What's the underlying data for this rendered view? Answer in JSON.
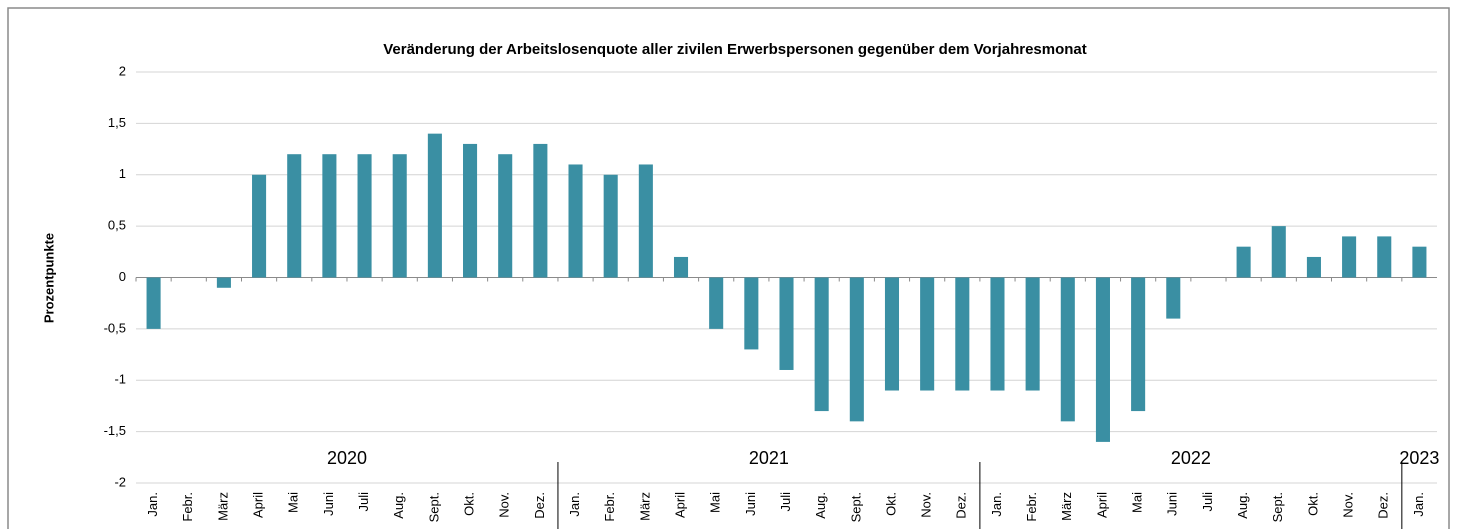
{
  "chart_data": {
    "type": "bar",
    "title": "Veränderung der Arbeitslosenquote aller zivilen Erwerbspersonen gegenüber dem Vorjahresmonat",
    "y_label": "Prozentpunkte",
    "categories": [
      "Jan.",
      "Febr.",
      "März",
      "April",
      "Mai",
      "Juni",
      "Juli",
      "Aug.",
      "Sept.",
      "Okt.",
      "Nov.",
      "Dez.",
      "Jan.",
      "Febr.",
      "März",
      "April",
      "Mai",
      "Juni",
      "Juli",
      "Aug.",
      "Sept.",
      "Okt.",
      "Nov.",
      "Dez.",
      "Jan.",
      "Febr.",
      "März",
      "April",
      "Mai",
      "Juni",
      "Juli",
      "Aug.",
      "Sept.",
      "Okt.",
      "Nov.",
      "Dez.",
      "Jan."
    ],
    "years": [
      "2020",
      "2021",
      "2022",
      "2023"
    ],
    "values": [
      -0.5,
      0,
      -0.1,
      1.0,
      1.2,
      1.2,
      1.2,
      1.2,
      1.4,
      1.3,
      1.2,
      1.3,
      1.1,
      1.0,
      1.1,
      0.2,
      -0.5,
      -0.7,
      -0.9,
      -1.3,
      -1.4,
      -1.1,
      -1.1,
      -1.1,
      -1.1,
      -1.1,
      -1.4,
      -1.6,
      -1.3,
      -0.4,
      0,
      0.3,
      0.5,
      0.2,
      0.4,
      0.4,
      0.3
    ],
    "color": "#3a8fa3",
    "ylim": [
      -2,
      2
    ],
    "yticks": [
      -2,
      {
        "value": -1.5,
        "label": "-1,5"
      },
      -1,
      {
        "value": -0.5,
        "label": "-0,5"
      },
      0,
      {
        "value": 0.5,
        "label": "0,5"
      },
      1,
      {
        "value": 1.5,
        "label": "1,5"
      },
      2
    ],
    "grid": true
  }
}
